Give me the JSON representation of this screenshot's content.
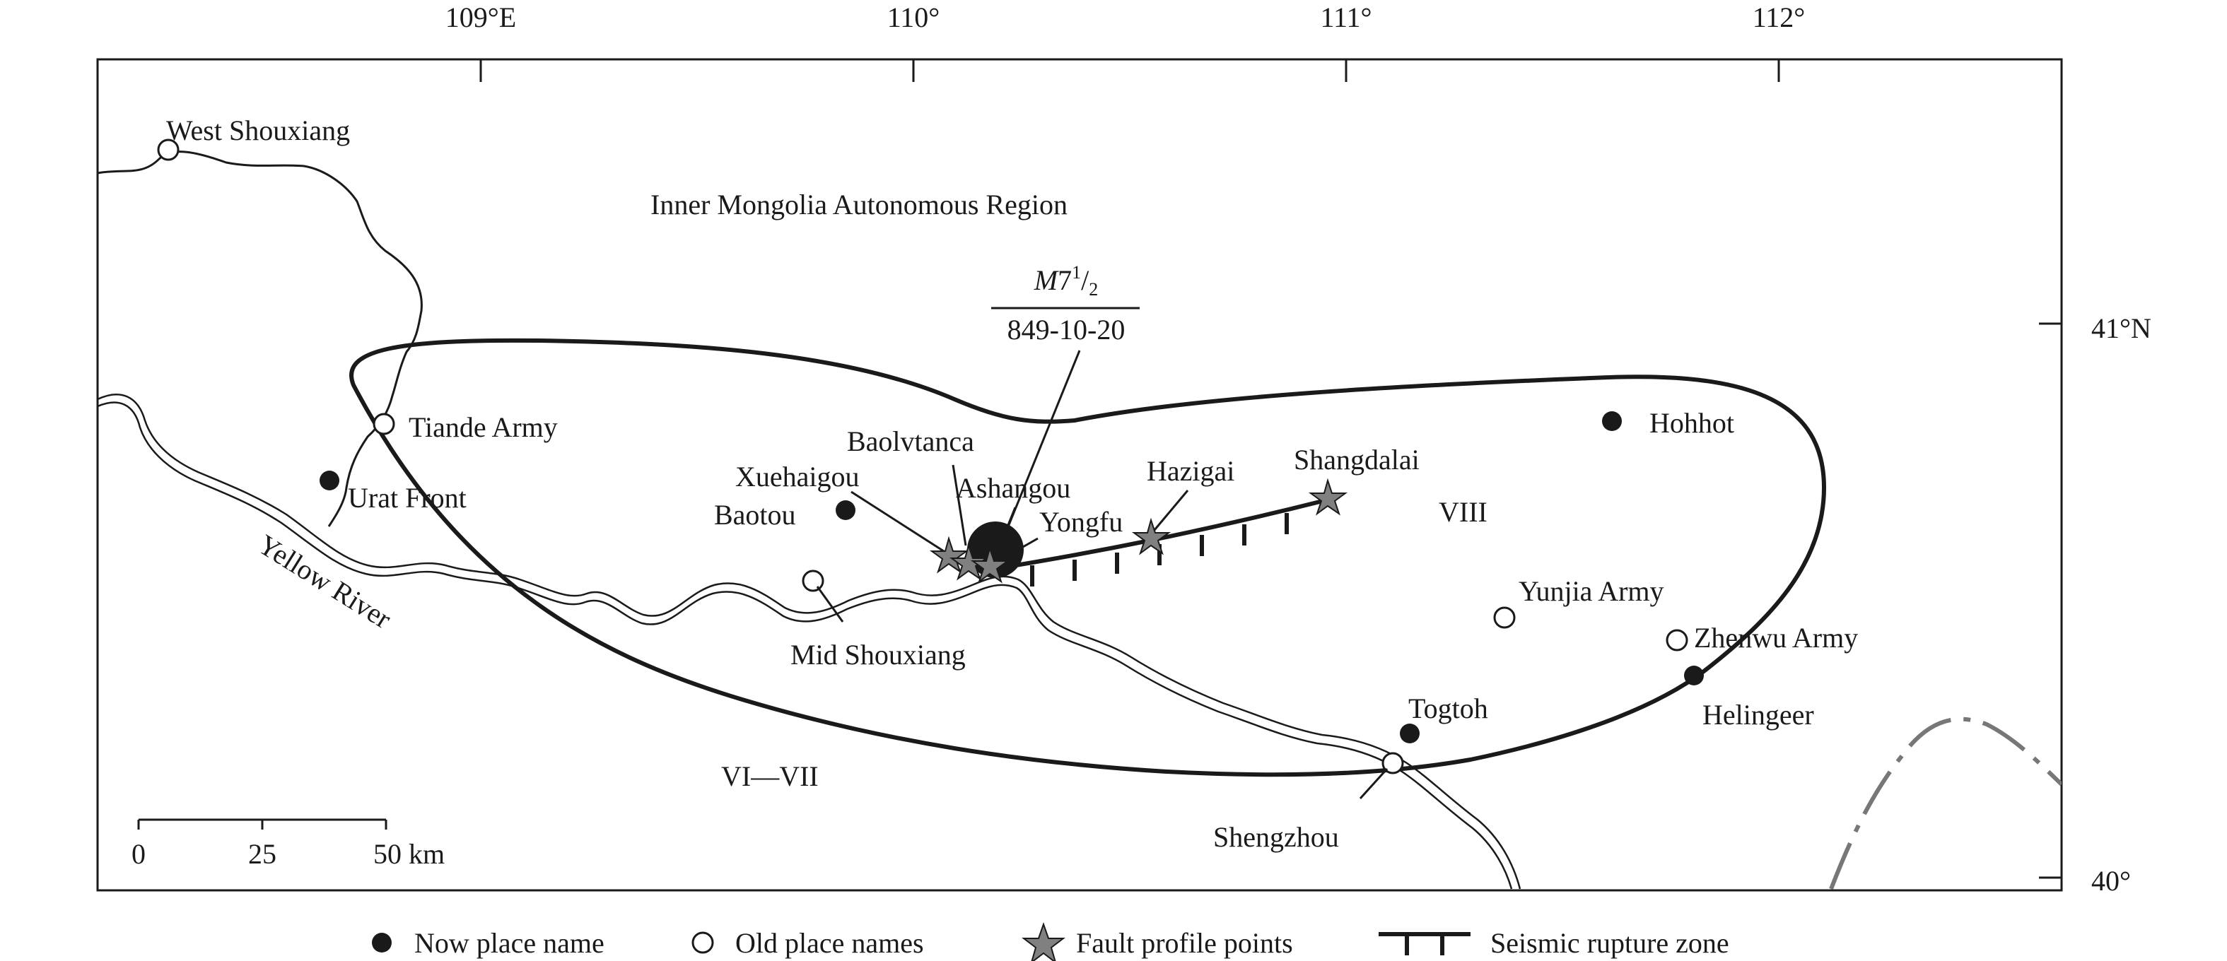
{
  "axes": {
    "longitude_ticks": [
      "109°E",
      "110°",
      "111°",
      "112°"
    ],
    "latitude_ticks": [
      "41°N",
      "40°"
    ]
  },
  "region": "Inner Mongolia Autonomous Region",
  "river": "Yellow River",
  "earthquake": {
    "magnitude_prefix": "M",
    "magnitude_whole": "7",
    "magnitude_sup": "1",
    "magnitude_slash": "/",
    "magnitude_sub": "2",
    "date": "849-10-20"
  },
  "intensity": {
    "inner": "VIII",
    "outer": "VI—VII"
  },
  "places": {
    "now": {
      "urat_front": "Urat Front",
      "baotou": "Baotou",
      "hohhot": "Hohhot",
      "togtoh": "Togtoh",
      "helingeer": "Helingeer"
    },
    "old": {
      "west_shouxiang": "West Shouxiang",
      "tiande_army": "Tiande Army",
      "mid_shouxiang": "Mid Shouxiang",
      "yunjia_army": "Yunjia Army",
      "zhenwu_army": "Zhenwu Army",
      "shengzhou": "Shengzhou"
    },
    "profiles": {
      "xuehaigou": "Xuehaigou",
      "baolvtanca": "Baolvtanca",
      "ashangou": "Ashangou",
      "yongfu": "Yongfu",
      "hazigai": "Hazigai",
      "shangdalai": "Shangdalai"
    }
  },
  "scale_bar": {
    "labels": [
      "0",
      "25",
      "50 km"
    ]
  },
  "legend": {
    "now_place": "Now place name",
    "old_place": "Old place names",
    "fault_profile": "Fault profile points",
    "rupture_zone": "Seismic rupture zone"
  },
  "colors": {
    "ink": "#1a1a1a",
    "star_fill": "#808080",
    "province_boundary": "#777777"
  }
}
